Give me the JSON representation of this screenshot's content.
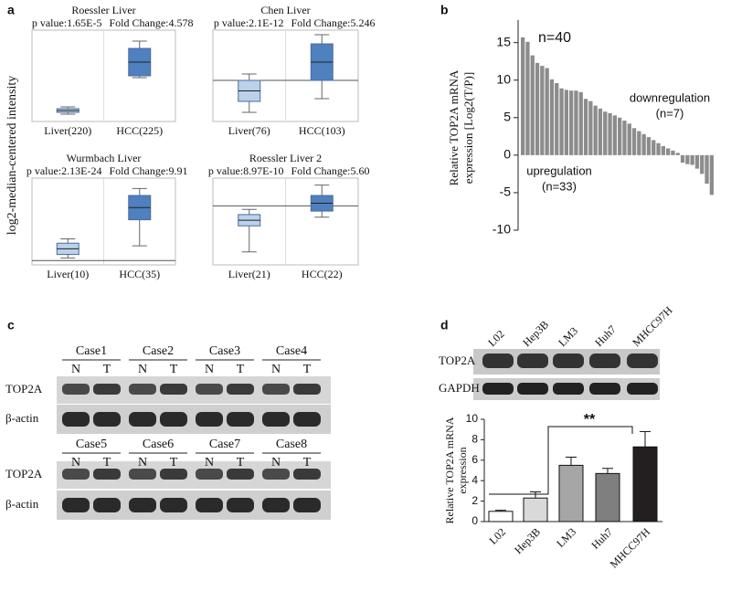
{
  "panel_labels": [
    "a",
    "b",
    "c",
    "d"
  ],
  "panel_a": {
    "y_label": "log2-median-centered intensity",
    "plots": [
      {
        "title": "Roessler Liver",
        "p_value": "p value:1.65E-5",
        "fold_change": "Fold Change:4.578",
        "groups": [
          "Liver(220)",
          "HCC(225)"
        ]
      },
      {
        "title": "Chen Liver",
        "p_value": "p value:2.1E-12",
        "fold_change": "Fold Change:5.246",
        "groups": [
          "Liver(76)",
          "HCC(103)"
        ]
      },
      {
        "title": "Wurmbach Liver",
        "p_value": "p value:2.13E-24",
        "fold_change": "Fold Change:9.91",
        "groups": [
          "Liver(10)",
          "HCC(35)"
        ]
      },
      {
        "title": "Roessler Liver 2",
        "p_value": "p value:8.97E-10",
        "fold_change": "Fold Change:5.60",
        "groups": [
          "Liver(21)",
          "HCC(22)"
        ]
      }
    ]
  },
  "panel_c": {
    "rows": [
      {
        "cases": [
          "Case1",
          "Case2",
          "Case3",
          "Case4"
        ]
      },
      {
        "cases": [
          "Case5",
          "Case6",
          "Case7",
          "Case8"
        ]
      }
    ],
    "lane_labels": [
      "N",
      "T"
    ],
    "bands": [
      "TOP2A",
      "β-actin"
    ]
  },
  "panel_d_blot": {
    "lanes": [
      "L02",
      "Hep3B",
      "LM3",
      "Huh7",
      "MHCC97H"
    ],
    "bands": [
      "TOP2A",
      "GAPDH"
    ]
  },
  "chart_data": [
    {
      "type": "bar",
      "y_label": [
        "Relative TOP2A mRNA",
        "expression [Log2(T/P)]"
      ],
      "annotations": [
        "n=40",
        "downregulation",
        "(n=7)",
        "upregulation",
        "(n=33)"
      ],
      "values": [
        15.7,
        15.1,
        13.3,
        12.3,
        11.9,
        11.6,
        10.1,
        9.6,
        8.9,
        8.7,
        8.6,
        8.6,
        8.4,
        7.5,
        7.2,
        6.6,
        6.2,
        5.8,
        5.6,
        5.3,
        5.0,
        4.6,
        4.2,
        3.6,
        3.2,
        2.8,
        2.4,
        2.0,
        1.6,
        1.2,
        0.9,
        0.6,
        0.3,
        -1.0,
        -1.2,
        -1.3,
        -1.8,
        -2.5,
        -3.8,
        -5.3
      ],
      "color": "#8c8c8c",
      "ylim": [
        -10,
        18
      ],
      "yticks": [
        -10,
        -5,
        0,
        5,
        10,
        15
      ]
    },
    {
      "type": "bar",
      "y_label": [
        "Relative TOP2A mRNA",
        "expression"
      ],
      "categories": [
        "L02",
        "Hep3B",
        "LM3",
        "Huh7",
        "MHCC97H"
      ],
      "values": [
        1.0,
        2.3,
        5.5,
        4.7,
        7.3
      ],
      "errors": [
        0.1,
        0.6,
        0.8,
        0.5,
        1.5
      ],
      "colors": [
        "#ffffff",
        "#d9d9d9",
        "#a6a6a6",
        "#7f7f7f",
        "#231f20"
      ],
      "ylim": [
        0,
        10
      ],
      "yticks": [
        0,
        2,
        4,
        6,
        8,
        10
      ],
      "significance": "**"
    }
  ]
}
